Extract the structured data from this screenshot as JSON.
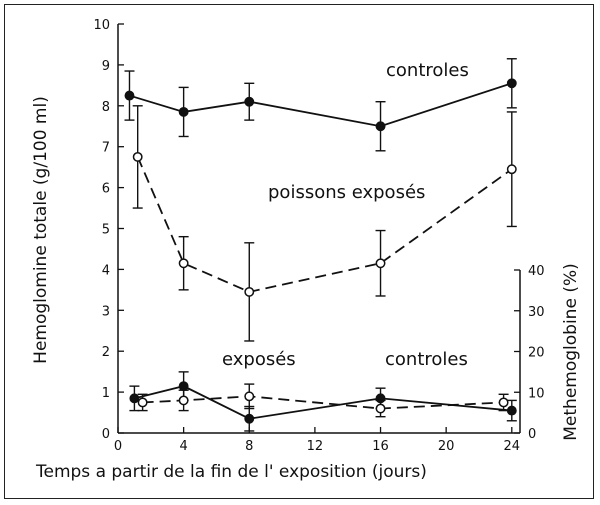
{
  "chart_data": {
    "type": "line",
    "xlabel": "Temps a partir de la fin de l' exposition (jours)",
    "ylabel": "Hemoglomine totale (g/100 ml)",
    "y2label": "Methemoglobine (%)",
    "x_ticks": [
      0,
      4,
      8,
      12,
      16,
      20,
      24
    ],
    "y_ticks": [
      0,
      1,
      2,
      3,
      4,
      5,
      6,
      7,
      8,
      9,
      10
    ],
    "y2_ticks": [
      0,
      10,
      20,
      30,
      40
    ],
    "xlim": [
      0,
      24.5
    ],
    "ylim": [
      0,
      10
    ],
    "y2lim": [
      0,
      40
    ],
    "grid": false,
    "hemoglobine": {
      "series": [
        {
          "name": "controles",
          "style": "solid",
          "marker": "filled",
          "x": [
            0.7,
            4,
            8,
            16,
            24
          ],
          "y": [
            8.25,
            7.85,
            8.1,
            7.5,
            8.55
          ],
          "err": [
            0.6,
            0.6,
            0.45,
            0.6,
            0.6
          ]
        },
        {
          "name": "poissons exposés",
          "style": "dashed",
          "marker": "open",
          "x": [
            1.2,
            4,
            8,
            16,
            24
          ],
          "y": [
            6.75,
            4.15,
            3.45,
            4.15,
            6.45
          ],
          "err": [
            1.25,
            0.65,
            1.2,
            0.8,
            1.4
          ]
        }
      ]
    },
    "methemoglobine": {
      "series": [
        {
          "name": "exposés",
          "style": "solid",
          "marker": "filled",
          "x": [
            1,
            4,
            8,
            16,
            24
          ],
          "y": [
            8.5,
            11.5,
            3.5,
            8.5,
            5.5
          ],
          "err": [
            3,
            3.5,
            3,
            2.5,
            2.5
          ]
        },
        {
          "name": "controles",
          "style": "dashed",
          "marker": "open",
          "x": [
            1.5,
            4,
            8,
            16,
            23.5
          ],
          "y": [
            7.5,
            8,
            9,
            6,
            7.5
          ],
          "err": [
            2,
            2.5,
            3,
            2,
            2
          ]
        }
      ]
    },
    "annotations": [
      {
        "text": "controles",
        "target": "hb_controles"
      },
      {
        "text": "poissons exposés",
        "target": "hb_exposes"
      },
      {
        "text": "exposés",
        "target": "met_exposes"
      },
      {
        "text": "controles",
        "target": "met_controles"
      }
    ]
  }
}
